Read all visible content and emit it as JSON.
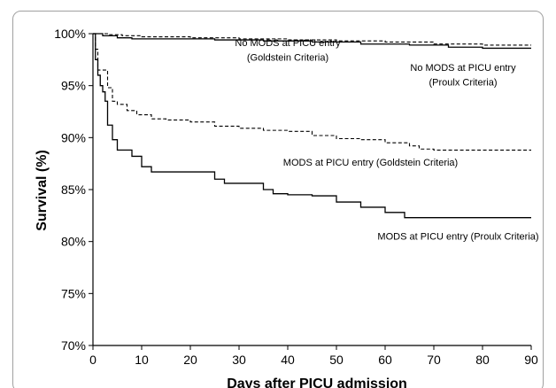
{
  "chart_data": {
    "type": "line",
    "title": "",
    "xlabel": "Days after PICU admission",
    "ylabel": "Survival (%)",
    "xlim": [
      0,
      90
    ],
    "ylim": [
      70,
      100
    ],
    "x_ticks": [
      "0",
      "10",
      "20",
      "30",
      "40",
      "50",
      "60",
      "70",
      "80",
      "90"
    ],
    "y_ticks": [
      "70%",
      "75%",
      "80%",
      "85%",
      "90%",
      "95%",
      "100%"
    ],
    "grid": false,
    "series": [
      {
        "name": "MODS at PICU entry (Proulx Criteria)",
        "style": "solid",
        "x": [
          0,
          0.5,
          1,
          1.5,
          2,
          2.5,
          3,
          4,
          5,
          6,
          8,
          10,
          12,
          15,
          20,
          25,
          27,
          30,
          35,
          37,
          40,
          45,
          50,
          55,
          60,
          64,
          70,
          80,
          90
        ],
        "y": [
          100,
          97.5,
          96,
          95,
          94.4,
          93.5,
          91.2,
          89.8,
          88.8,
          88.8,
          88.2,
          87.2,
          86.7,
          86.7,
          86.7,
          86.0,
          85.6,
          85.6,
          85.0,
          84.6,
          84.5,
          84.4,
          83.8,
          83.3,
          82.8,
          82.3,
          82.3,
          82.3,
          82.3
        ]
      },
      {
        "name": "MODS at PICU entry (Goldstein Criteria)",
        "style": "dashed",
        "x": [
          0,
          0.5,
          1,
          2,
          3,
          4,
          5,
          7,
          9,
          12,
          15,
          20,
          25,
          30,
          35,
          40,
          45,
          50,
          55,
          60,
          65,
          67,
          70,
          80,
          90
        ],
        "y": [
          100,
          98.5,
          96.5,
          96.5,
          94.8,
          93.5,
          93.2,
          92.6,
          92.2,
          91.8,
          91.7,
          91.5,
          91.1,
          90.9,
          90.7,
          90.6,
          90.2,
          89.9,
          89.8,
          89.5,
          89.2,
          88.9,
          88.8,
          88.8,
          88.8
        ]
      },
      {
        "name": "No MODS at PICU entry (Proulx Criteria)",
        "style": "solid",
        "x": [
          0,
          2,
          5,
          8,
          15,
          25,
          35,
          45,
          55,
          65,
          73,
          80,
          90
        ],
        "y": [
          100,
          99.8,
          99.6,
          99.5,
          99.5,
          99.4,
          99.3,
          99.2,
          99.0,
          98.9,
          98.7,
          98.6,
          98.6
        ]
      },
      {
        "name": "No MODS at PICU entry (Goldstein Criteria)",
        "style": "dashed",
        "x": [
          0,
          3,
          6,
          10,
          20,
          30,
          40,
          50,
          60,
          70,
          80,
          90
        ],
        "y": [
          100,
          99.9,
          99.8,
          99.7,
          99.6,
          99.5,
          99.4,
          99.3,
          99.2,
          99.0,
          98.9,
          98.9
        ]
      }
    ],
    "annotations": [
      {
        "text": "No MODS at PICU entry",
        "x": 40,
        "y": 98.8
      },
      {
        "text": "(Goldstein Criteria)",
        "x": 40,
        "y": 97.4
      },
      {
        "text": "No MODS at PICU entry",
        "x": 76,
        "y": 96.4
      },
      {
        "text": "(Proulx Criteria)",
        "x": 76,
        "y": 95.0
      },
      {
        "text": "MODS at PICU entry (Goldstein Criteria)",
        "x": 57,
        "y": 87.3
      },
      {
        "text": "MODS at PICU entry (Proulx Criteria)",
        "x": 75,
        "y": 80.2
      }
    ]
  }
}
